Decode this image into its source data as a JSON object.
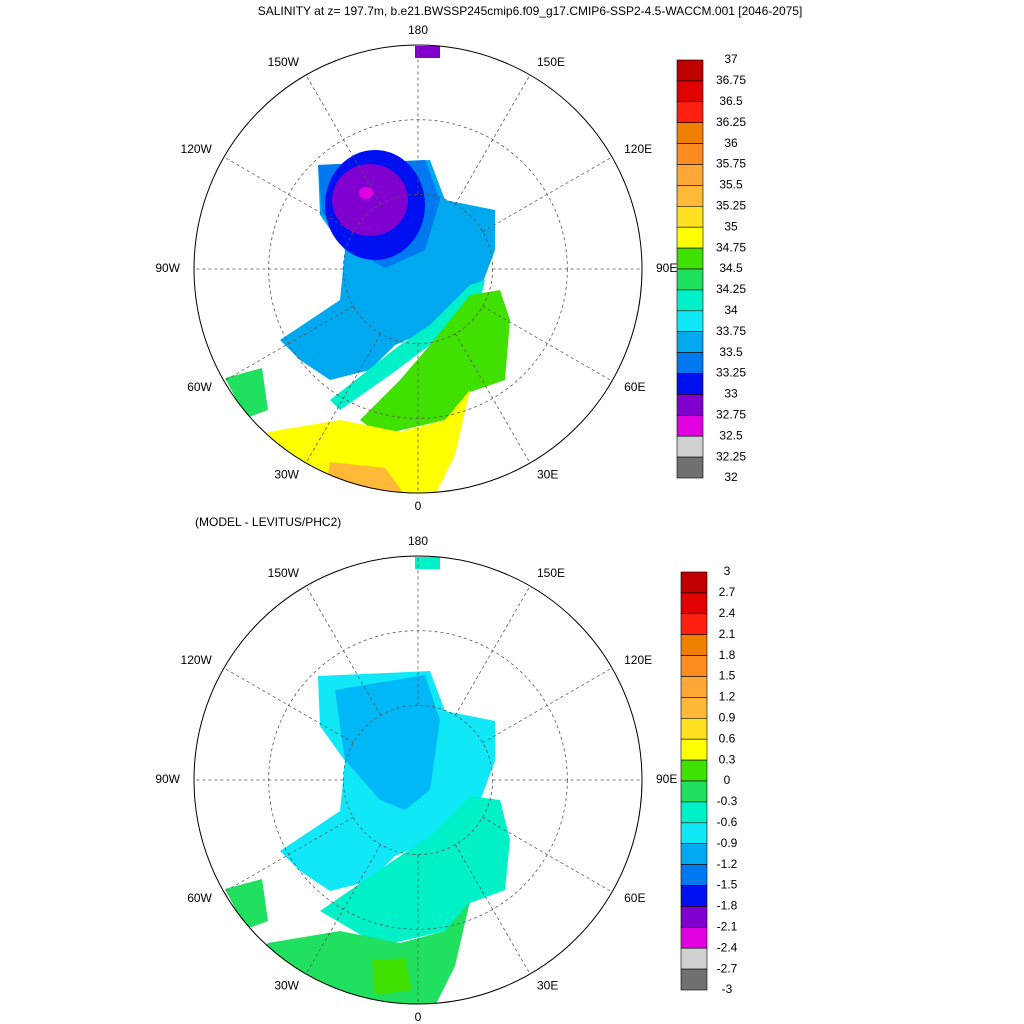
{
  "title": "SALINITY at z= 197.7m, b.e21.BWSSP245cmip6.f09_g17.CMIP6-SSP2-4.5-WACCM.001 [2046-2075]",
  "palette": [
    "#c00000",
    "#e00000",
    "#ff2010",
    "#f08000",
    "#ff8c20",
    "#ffa838",
    "#ffb838",
    "#ffe020",
    "#ffff00",
    "#40e000",
    "#20e060",
    "#00f0c8",
    "#10e8f8",
    "#00a8f0",
    "#0078f0",
    "#0010f0",
    "#8000d0",
    "#e000e0",
    "#d0d0d0",
    "#707070"
  ],
  "panels": [
    {
      "longitude_labels": [
        "0",
        "30E",
        "60E",
        "90E",
        "120E",
        "150E",
        "180",
        "150W",
        "120W",
        "90W",
        "60W",
        "30W"
      ],
      "colorbar": {
        "labels": [
          "37",
          "36.75",
          "36.5",
          "36.25",
          "36",
          "35.75",
          "35.5",
          "35.25",
          "35",
          "34.75",
          "34.5",
          "34.25",
          "34",
          "33.75",
          "33.5",
          "33.25",
          "33",
          "32.75",
          "32.5",
          "32.25",
          "32"
        ]
      }
    },
    {
      "subtitle": "(MODEL - LEVITUS/PHC2)",
      "longitude_labels": [
        "0",
        "30E",
        "60E",
        "90E",
        "120E",
        "150E",
        "180",
        "150W",
        "120W",
        "90W",
        "60W",
        "30W"
      ],
      "colorbar": {
        "labels": [
          "3",
          "2.7",
          "2.4",
          "2.1",
          "1.8",
          "1.5",
          "1.2",
          "0.9",
          "0.6",
          "0.3",
          "0",
          "-0.3",
          "-0.6",
          "-0.9",
          "-1.2",
          "-1.5",
          "-1.8",
          "-2.1",
          "-2.4",
          "-2.7",
          "-3"
        ]
      }
    }
  ]
}
